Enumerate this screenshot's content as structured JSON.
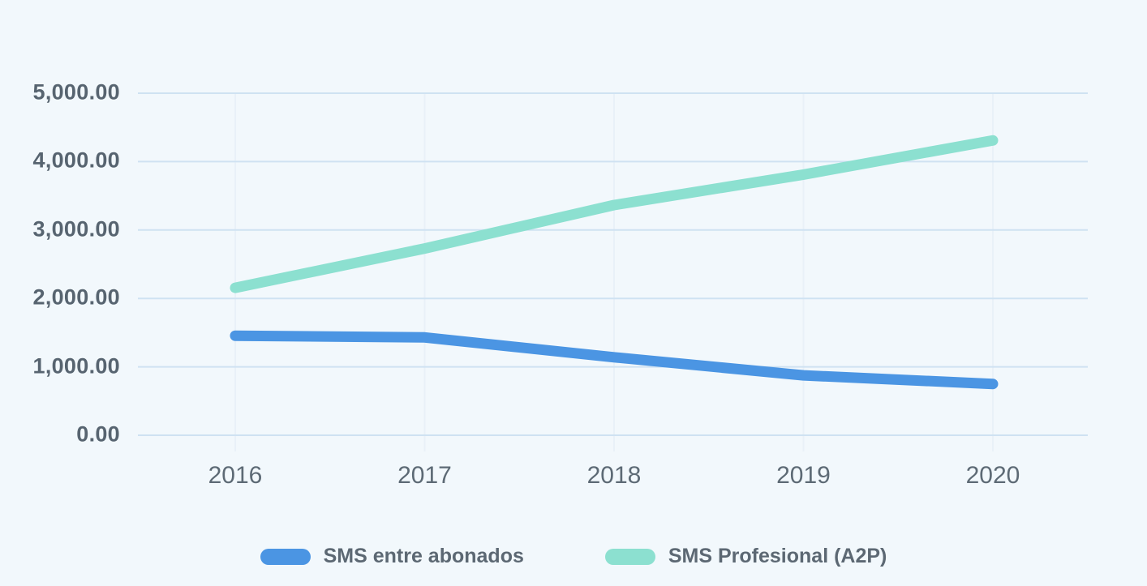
{
  "background_color": "#f2f8fc",
  "text_color": "#5d6a75",
  "grid_color": "#cfe2f2",
  "vertical_grid_color": "#e9f1f8",
  "chart_data": {
    "type": "line",
    "title": "",
    "xlabel": "",
    "ylabel": "",
    "categories": [
      "2016",
      "2017",
      "2018",
      "2019",
      "2020"
    ],
    "series": [
      {
        "name": "SMS entre abonados",
        "color": "#4b95e3",
        "values": [
          1455,
          1430,
          1140,
          875,
          750
        ]
      },
      {
        "name": "SMS Profesional (A2P)",
        "color": "#8ce0d0",
        "values": [
          2155,
          2730,
          3365,
          3810,
          4310
        ]
      }
    ],
    "ylim": [
      0,
      5000
    ],
    "y_ticks": [
      {
        "label": "5,000.00",
        "value": 5000
      },
      {
        "label": "4,000.00",
        "value": 4000
      },
      {
        "label": "3,000.00",
        "value": 3000
      },
      {
        "label": "2,000.00",
        "value": 2000
      },
      {
        "label": "1,000.00",
        "value": 1000
      },
      {
        "label": "0.00",
        "value": 0
      }
    ],
    "grid": true,
    "legend_position": "bottom"
  }
}
